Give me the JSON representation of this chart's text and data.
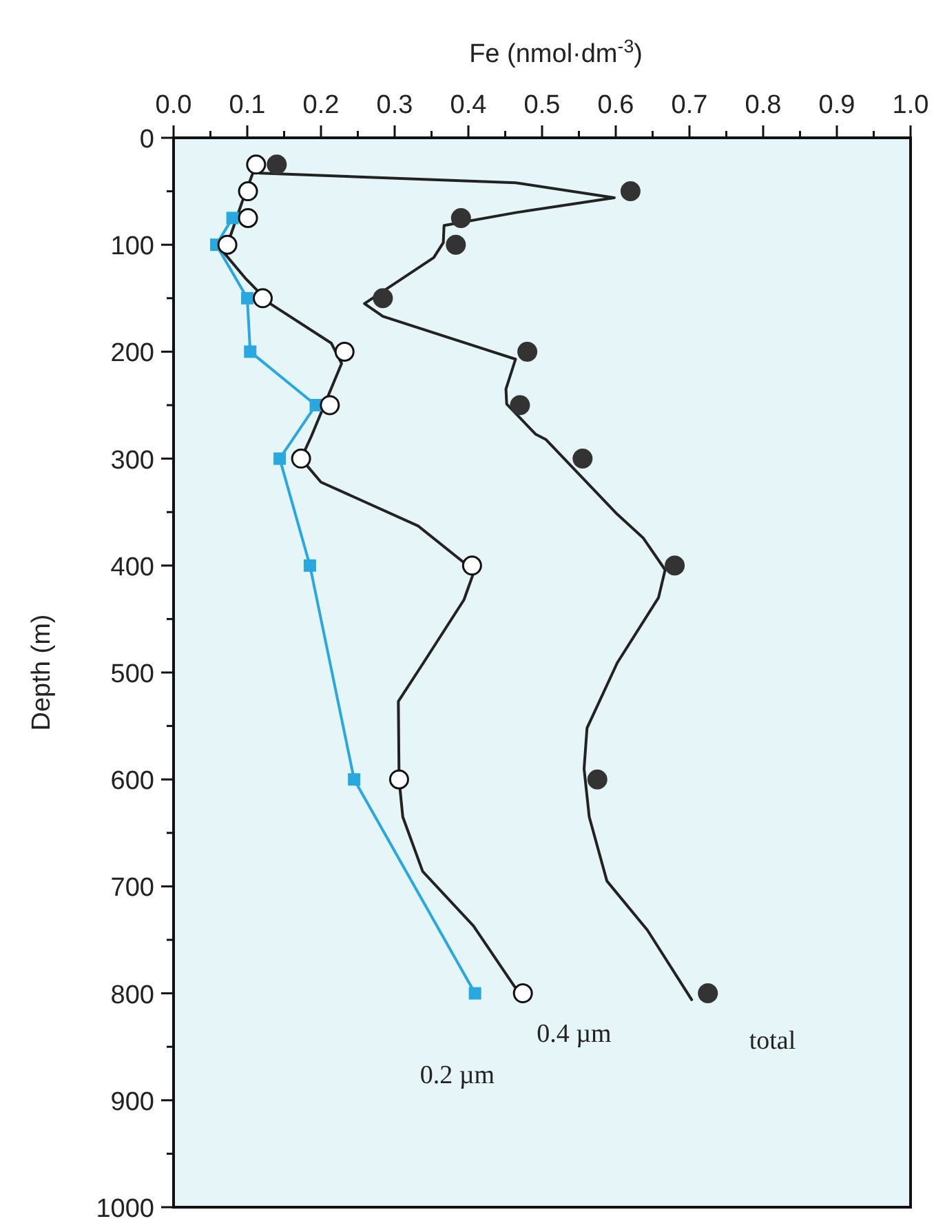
{
  "chart_data": {
    "type": "line",
    "xlabel": "Fe (nmol·dm$^{-3}$)",
    "ylabel": "Depth (m)",
    "xlim": [
      0,
      1
    ],
    "ylim": [
      1000,
      0
    ],
    "xticks": [
      {
        "value": 0,
        "label": "0.0"
      },
      {
        "value": 0.05,
        "label": null
      },
      {
        "value": 0.1,
        "label": "0.1"
      },
      {
        "value": 0.15,
        "label": null
      },
      {
        "value": 0.2,
        "label": "0.2"
      },
      {
        "value": 0.25,
        "label": null
      },
      {
        "value": 0.3,
        "label": "0.3"
      },
      {
        "value": 0.35,
        "label": null
      },
      {
        "value": 0.4,
        "label": "0.4"
      },
      {
        "value": 0.45,
        "label": null
      },
      {
        "value": 0.5,
        "label": "0.5"
      },
      {
        "value": 0.55,
        "label": null
      },
      {
        "value": 0.6,
        "label": "0.6"
      },
      {
        "value": 0.65,
        "label": null
      },
      {
        "value": 0.7,
        "label": "0.7"
      },
      {
        "value": 0.75,
        "label": null
      },
      {
        "value": 0.8,
        "label": "0.8"
      },
      {
        "value": 0.85,
        "label": null
      },
      {
        "value": 0.9,
        "label": "0.9"
      },
      {
        "value": 0.95,
        "label": null
      },
      {
        "value": 1,
        "label": "1.0"
      }
    ],
    "yticks": [
      0,
      {
        "value": 50,
        "label": null
      },
      100,
      {
        "value": 150,
        "label": null
      },
      200,
      {
        "value": 250,
        "label": null
      },
      300,
      {
        "value": 350,
        "label": null
      },
      400,
      {
        "value": 450,
        "label": null
      },
      500,
      {
        "value": 550,
        "label": null
      },
      600,
      {
        "value": 650,
        "label": null
      },
      700,
      {
        "value": 750,
        "label": null
      },
      800,
      {
        "value": 850,
        "label": null
      },
      900,
      {
        "value": 950,
        "label": null
      },
      1000
    ],
    "grid": false,
    "series": [
      {
        "color": "#222222",
        "marker": "none",
        "line_style": "solid",
        "x": [
          0.117,
          0.464,
          0.598,
          0.464,
          0.367,
          0.366,
          0.353,
          0.259,
          0.284,
          0.464,
          0.451,
          0.452,
          0.491,
          0.505,
          0.602,
          0.637,
          0.667,
          0.658,
          0.602,
          0.561,
          0.557,
          0.564,
          0.588,
          0.643,
          0.703
        ],
        "values": [
          33,
          42,
          56,
          70,
          82,
          98,
          112,
          155,
          167,
          207,
          235,
          249,
          277,
          282,
          352,
          374,
          404,
          430,
          491,
          552,
          590,
          635,
          695,
          741,
          806
        ]
      },
      {
        "color": "#222222",
        "marker": "none",
        "line_style": "solid",
        "x": [
          0.107,
          0.093,
          0.082,
          0.069,
          0.097,
          0.131,
          0.214,
          0.228,
          0.187,
          0.173,
          0.2,
          0.332,
          0.408,
          0.394,
          0.339,
          0.305,
          0.306,
          0.311,
          0.338,
          0.407,
          0.463
        ],
        "values": [
          34,
          60,
          82,
          108,
          131,
          155,
          192,
          211,
          279,
          300,
          322,
          363,
          405,
          432,
          491,
          527,
          600,
          635,
          686,
          737,
          794
        ]
      },
      {
        "name": "0.2 µm",
        "color": "#29a8e0",
        "marker": "square",
        "line_style": "solid",
        "x": [
          0.08,
          0.058,
          0.1,
          0.104,
          0.193,
          0.144,
          0.185,
          0.245,
          0.409
        ],
        "values": [
          75,
          100,
          150,
          200,
          250,
          300,
          400,
          600,
          800
        ]
      },
      {
        "type": "scatter",
        "name": "0.4 µm",
        "color": "#ffffff",
        "marker": "circle",
        "x": [
          0.112,
          0.101,
          0.101,
          0.073,
          0.121,
          0.232,
          0.212,
          0.173,
          0.405,
          0.306,
          0.474
        ],
        "values": [
          25,
          50,
          75,
          100,
          150,
          200,
          250,
          300,
          400,
          600,
          800
        ]
      },
      {
        "type": "scatter",
        "name": "total",
        "color": "#333333",
        "marker": "circle",
        "x": [
          0.14,
          0.62,
          0.39,
          0.383,
          0.284,
          0.48,
          0.47,
          0.555,
          0.68,
          0.575,
          0.725
        ],
        "values": [
          25,
          50,
          75,
          100,
          150,
          200,
          250,
          300,
          400,
          600,
          800
        ]
      }
    ]
  }
}
